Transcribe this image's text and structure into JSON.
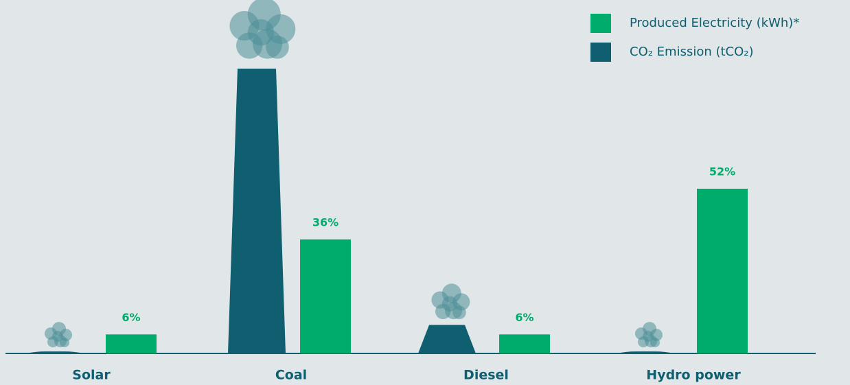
{
  "chart_data": {
    "type": "bar",
    "categories": [
      "Solar",
      "Coal",
      "Diesel",
      "Hydro power"
    ],
    "series": [
      {
        "name": "CO₂ Emission (tCO₂)",
        "color": "#0f5f70",
        "values": [
          0.7,
          100,
          10,
          0.7
        ]
      },
      {
        "name": "Produced Electricity (kWh)*",
        "color": "#00ac6b",
        "values": [
          6,
          36,
          6,
          52
        ],
        "value_labels": [
          "6%",
          "36%",
          "6%",
          "52%"
        ]
      }
    ]
  }
}
